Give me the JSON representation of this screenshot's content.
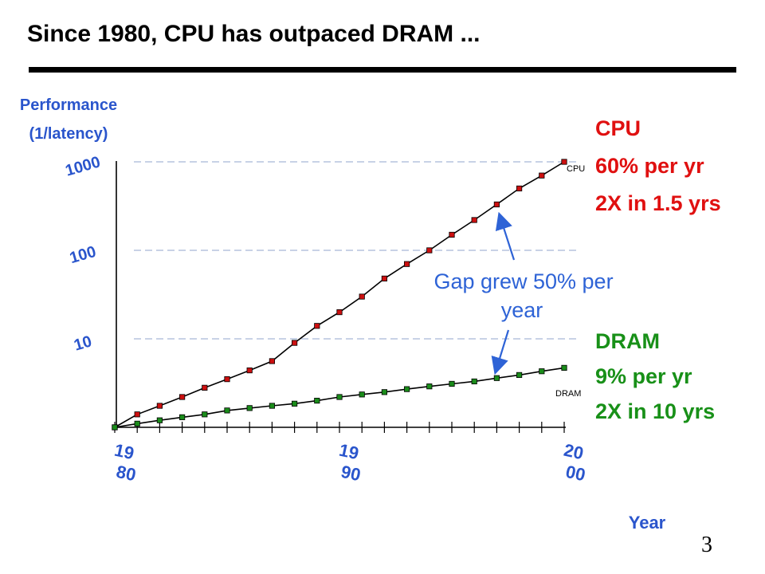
{
  "slide": {
    "title": "Since 1980, CPU has outpaced DRAM ...",
    "page_number": "3"
  },
  "chart_data": {
    "type": "line",
    "ylabel_line1": "Performance",
    "ylabel_line2": "(1/latency)",
    "xlabel": "Year",
    "y_scale": "log",
    "ylim": [
      1,
      1000
    ],
    "y_ticks": [
      {
        "value": 10,
        "label": "10"
      },
      {
        "value": 100,
        "label": "100"
      },
      {
        "value": 1000,
        "label": "1000"
      }
    ],
    "x_ticks": [
      {
        "value": 1980,
        "line1": "19",
        "line2": "80"
      },
      {
        "value": 1990,
        "line1": "19",
        "line2": "90"
      },
      {
        "value": 2000,
        "line1": "20",
        "line2": "00"
      }
    ],
    "xlim": [
      1980,
      2000
    ],
    "x": [
      1980,
      1981,
      1982,
      1983,
      1984,
      1985,
      1986,
      1987,
      1988,
      1989,
      1990,
      1991,
      1992,
      1993,
      1994,
      1995,
      1996,
      1997,
      1998,
      1999,
      2000
    ],
    "grid": "dashed horizontal lines at 10, 100, 1000",
    "series": [
      {
        "name": "CPU",
        "color": "#cc1010",
        "values": [
          1,
          1.4,
          1.75,
          2.2,
          2.8,
          3.5,
          4.4,
          5.6,
          9,
          14,
          20,
          30,
          48,
          70,
          100,
          150,
          220,
          330,
          500,
          700,
          1000
        ]
      },
      {
        "name": "DRAM",
        "color": "#1a8c1a",
        "values": [
          1,
          1.1,
          1.2,
          1.3,
          1.4,
          1.55,
          1.65,
          1.75,
          1.85,
          2.0,
          2.2,
          2.35,
          2.5,
          2.7,
          2.9,
          3.1,
          3.3,
          3.6,
          3.9,
          4.3,
          4.7
        ]
      }
    ],
    "annotations": {
      "cpu_box": {
        "lines": [
          "CPU",
          "60% per yr",
          "2X in 1.5 yrs"
        ],
        "color": "#e01010"
      },
      "dram_box": {
        "lines": [
          "DRAM",
          "9% per yr",
          "2X in 10 yrs"
        ],
        "color": "#189018"
      },
      "gap": {
        "lines": [
          "Gap grew 50% per",
          "year"
        ],
        "color": "#2e63d6"
      }
    }
  }
}
